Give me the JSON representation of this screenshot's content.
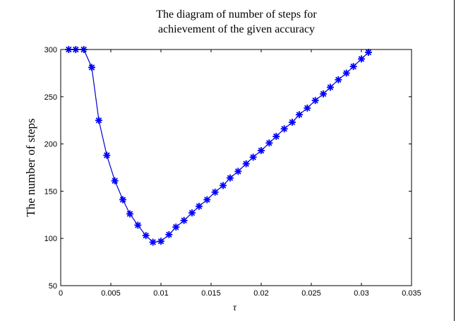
{
  "chart_data": {
    "type": "line",
    "title_lines": [
      "The diagram of number of steps for",
      "achievement of the given accuracy"
    ],
    "xlabel": "τ",
    "ylabel": "The number of steps",
    "xlim": [
      0,
      0.035
    ],
    "ylim": [
      50,
      300
    ],
    "xticks": [
      0,
      0.005,
      0.01,
      0.015,
      0.02,
      0.025,
      0.03,
      0.035
    ],
    "xtick_labels": [
      "0",
      "0.005",
      "0.01",
      "0.015",
      "0.02",
      "0.025",
      "0.03",
      "0.035"
    ],
    "yticks": [
      50,
      100,
      150,
      200,
      250,
      300
    ],
    "ytick_labels": [
      "50",
      "100",
      "150",
      "200",
      "250",
      "300"
    ],
    "grid": false,
    "marker": "asterisk",
    "line_color": "#0000cc",
    "marker_color": "#0000ff",
    "series": [
      {
        "x": [
          0.0008,
          0.0015,
          0.0023,
          0.0031,
          0.0038,
          0.0046,
          0.0054,
          0.0062,
          0.0069,
          0.0077,
          0.0085,
          0.0092,
          0.01,
          0.0108,
          0.0115,
          0.0123,
          0.0131,
          0.0138,
          0.0146,
          0.0154,
          0.0162,
          0.0169,
          0.0177,
          0.0185,
          0.0192,
          0.02,
          0.0208,
          0.0215,
          0.0223,
          0.0231,
          0.0238,
          0.0246,
          0.0254,
          0.0262,
          0.0269,
          0.0277,
          0.0285,
          0.0292,
          0.03,
          0.0307
        ],
        "y": [
          300,
          300,
          300,
          281,
          225,
          188,
          161,
          141,
          126,
          114,
          103,
          96,
          97,
          104,
          112,
          119,
          127,
          134,
          141,
          149,
          156,
          164,
          171,
          179,
          186,
          193,
          201,
          208,
          216,
          223,
          231,
          238,
          246,
          253,
          260,
          268,
          275,
          282,
          290,
          297
        ]
      }
    ]
  }
}
